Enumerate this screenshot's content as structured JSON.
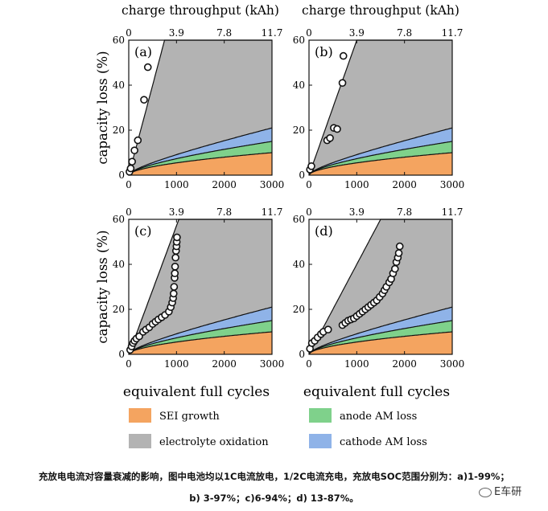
{
  "chart_data": {
    "type": "area",
    "top_axis_label": "charge throughput (kAh)",
    "top_axis_ticks": [
      "0",
      "3.9",
      "7.8",
      "11.7"
    ],
    "xlabel": "equivalent full cycles",
    "ylabel": "capacity loss (%)",
    "x_ticks": [
      0,
      1000,
      2000,
      3000
    ],
    "y_ticks": [
      0,
      20,
      40,
      60
    ],
    "xlim": [
      0,
      3000
    ],
    "ylim": [
      0,
      60
    ],
    "legend": [
      {
        "name": "SEI growth",
        "color": "#f4a460"
      },
      {
        "name": "anode AM loss",
        "color": "#7fd18b"
      },
      {
        "name": "electrolyte oxidation",
        "color": "#b3b3b3"
      },
      {
        "name": "cathode AM loss",
        "color": "#8fb3e8"
      }
    ],
    "model_curves_at_3000": {
      "sei": 10,
      "anode_am": 15,
      "cathode_am": 21
    },
    "panels": [
      {
        "label": "(a)",
        "upper_line": [
          [
            0,
            0
          ],
          [
            750,
            60
          ]
        ],
        "measured": [
          [
            15,
            1.5
          ],
          [
            40,
            3
          ],
          [
            70,
            6
          ],
          [
            120,
            11
          ],
          [
            190,
            15.5
          ],
          [
            320,
            33.5
          ],
          [
            400,
            48
          ]
        ]
      },
      {
        "label": "(b)",
        "upper_line": [
          [
            0,
            0
          ],
          [
            1000,
            60
          ]
        ],
        "measured": [
          [
            20,
            2.5
          ],
          [
            50,
            4
          ],
          [
            380,
            15.5
          ],
          [
            440,
            16.5
          ],
          [
            520,
            21
          ],
          [
            590,
            20.5
          ],
          [
            700,
            41
          ],
          [
            720,
            53
          ]
        ]
      },
      {
        "label": "(c)",
        "upper_line": [
          [
            0,
            0
          ],
          [
            1050,
            60
          ]
        ],
        "measured": [
          [
            30,
            2
          ],
          [
            60,
            3.5
          ],
          [
            90,
            5
          ],
          [
            120,
            6
          ],
          [
            160,
            7
          ],
          [
            220,
            8
          ],
          [
            300,
            10
          ],
          [
            360,
            11
          ],
          [
            430,
            12
          ],
          [
            500,
            13.5
          ],
          [
            560,
            14.5
          ],
          [
            620,
            15.5
          ],
          [
            690,
            16.5
          ],
          [
            760,
            17.5
          ],
          [
            840,
            19
          ],
          [
            880,
            21
          ],
          [
            910,
            23
          ],
          [
            930,
            25
          ],
          [
            940,
            27
          ],
          [
            950,
            30
          ],
          [
            960,
            34
          ],
          [
            965,
            36
          ],
          [
            970,
            39
          ],
          [
            980,
            43
          ],
          [
            990,
            46
          ],
          [
            1000,
            48
          ],
          [
            1005,
            50
          ],
          [
            1010,
            52
          ]
        ]
      },
      {
        "label": "(d)",
        "upper_line": [
          [
            0,
            0
          ],
          [
            1500,
            60
          ]
        ],
        "measured": [
          [
            20,
            2.5
          ],
          [
            60,
            5
          ],
          [
            120,
            6
          ],
          [
            180,
            7.5
          ],
          [
            250,
            9
          ],
          [
            300,
            10
          ],
          [
            400,
            11
          ],
          [
            700,
            13
          ],
          [
            760,
            14
          ],
          [
            820,
            15
          ],
          [
            880,
            15.5
          ],
          [
            940,
            16
          ],
          [
            1000,
            17
          ],
          [
            1060,
            18
          ],
          [
            1120,
            19
          ],
          [
            1180,
            20
          ],
          [
            1240,
            21
          ],
          [
            1300,
            22
          ],
          [
            1360,
            23
          ],
          [
            1420,
            24
          ],
          [
            1480,
            25.5
          ],
          [
            1540,
            27
          ],
          [
            1580,
            28.5
          ],
          [
            1620,
            30
          ],
          [
            1680,
            32
          ],
          [
            1720,
            33.5
          ],
          [
            1760,
            36
          ],
          [
            1800,
            38
          ],
          [
            1830,
            41
          ],
          [
            1860,
            43
          ],
          [
            1880,
            45
          ],
          [
            1900,
            48
          ]
        ]
      }
    ]
  },
  "caption": {
    "line1": "充放电电流对容量衰减的影响，图中电池均以1C电流放电，1/2C电流充电，充放电SOC范围分别为：a)1-99%；",
    "line2": "b) 3-97%；c)6-94%；d) 13-87%。",
    "brand": "E车研"
  }
}
